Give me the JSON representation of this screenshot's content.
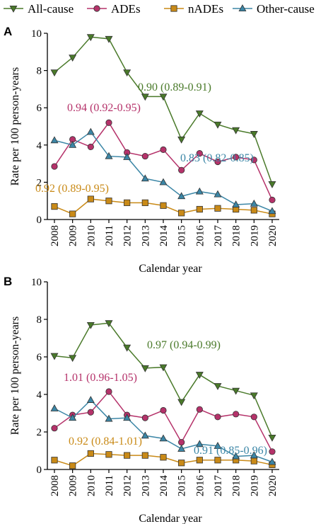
{
  "legend": [
    {
      "name": "All-cause",
      "color": "#4a7a2a",
      "marker": "triangle-down"
    },
    {
      "name": "ADEs",
      "color": "#b5326a",
      "marker": "circle"
    },
    {
      "name": "nADEs",
      "color": "#c98a17",
      "marker": "square"
    },
    {
      "name": "Other-cause",
      "color": "#3b86a6",
      "marker": "triangle-up"
    }
  ],
  "chart_data": [
    {
      "panel": "A",
      "type": "line",
      "xlabel": "Calendar year",
      "ylabel": "Rate per 100 person-years",
      "ylim": [
        0,
        10
      ],
      "yticks": [
        "0",
        "2",
        "4",
        "6",
        "8",
        "10"
      ],
      "x": [
        "2008",
        "2009",
        "2010",
        "2011",
        "2012",
        "2013",
        "2014",
        "2015",
        "2016",
        "2017",
        "2018",
        "2019",
        "2020"
      ],
      "series": [
        {
          "name": "All-cause",
          "color": "#4a7a2a",
          "marker": "triangle-down",
          "values": [
            7.9,
            8.7,
            9.8,
            9.7,
            7.9,
            6.6,
            6.6,
            4.3,
            5.7,
            5.1,
            4.8,
            4.6,
            1.9
          ]
        },
        {
          "name": "ADEs",
          "color": "#b5326a",
          "marker": "circle",
          "values": [
            2.85,
            4.3,
            3.9,
            5.2,
            3.6,
            3.4,
            3.75,
            2.65,
            3.55,
            3.1,
            3.35,
            3.2,
            1.05
          ]
        },
        {
          "name": "nADEs",
          "color": "#c98a17",
          "marker": "square",
          "values": [
            0.7,
            0.3,
            1.1,
            1.0,
            0.9,
            0.9,
            0.75,
            0.35,
            0.55,
            0.6,
            0.55,
            0.5,
            0.3
          ]
        },
        {
          "name": "Other-cause",
          "color": "#3b86a6",
          "marker": "triangle-up",
          "values": [
            4.25,
            4.0,
            4.7,
            3.4,
            3.35,
            2.2,
            2.0,
            1.25,
            1.5,
            1.35,
            0.8,
            0.85,
            0.45
          ]
        }
      ],
      "annotations": [
        {
          "text": "0.90 (0.89-0.91)",
          "color": "#4a7a2a"
        },
        {
          "text": "0.94 (0.92-0.95)",
          "color": "#b5326a"
        },
        {
          "text": "0.92 (0.89-0.95)",
          "color": "#c98a17"
        },
        {
          "text": "0.83 (0.82-0.85)",
          "color": "#3b86a6"
        }
      ]
    },
    {
      "panel": "B",
      "type": "line",
      "xlabel": "Calendar year",
      "ylabel": "Rate per 100 person-years",
      "ylim": [
        0,
        10
      ],
      "yticks": [
        "0",
        "2",
        "4",
        "6",
        "8",
        "10"
      ],
      "x": [
        "2008",
        "2009",
        "2010",
        "2011",
        "2012",
        "2013",
        "2014",
        "2015",
        "2016",
        "2017",
        "2018",
        "2019",
        "2020"
      ],
      "series": [
        {
          "name": "All-cause",
          "color": "#4a7a2a",
          "marker": "triangle-down",
          "values": [
            6.05,
            5.95,
            7.7,
            7.8,
            6.5,
            5.4,
            5.45,
            3.6,
            5.05,
            4.45,
            4.2,
            3.95,
            1.7
          ]
        },
        {
          "name": "ADEs",
          "color": "#b5326a",
          "marker": "circle",
          "values": [
            2.2,
            2.9,
            3.05,
            4.15,
            2.9,
            2.75,
            3.15,
            1.45,
            3.2,
            2.8,
            2.95,
            2.8,
            0.95
          ]
        },
        {
          "name": "nADEs",
          "color": "#c98a17",
          "marker": "square",
          "values": [
            0.5,
            0.2,
            0.85,
            0.8,
            0.75,
            0.75,
            0.65,
            0.35,
            0.5,
            0.5,
            0.5,
            0.45,
            0.25
          ]
        },
        {
          "name": "Other-cause",
          "color": "#3b86a6",
          "marker": "triangle-up",
          "values": [
            3.25,
            2.75,
            3.7,
            2.7,
            2.75,
            1.8,
            1.65,
            1.1,
            1.35,
            1.25,
            0.7,
            0.75,
            0.4
          ]
        }
      ],
      "annotations": [
        {
          "text": "0.97 (0.94-0.99)",
          "color": "#4a7a2a"
        },
        {
          "text": "1.01 (0.96-1.05)",
          "color": "#b5326a"
        },
        {
          "text": "0.92 (0.84-1.01)",
          "color": "#c98a17"
        },
        {
          "text": "0.91 (0.85-0.96)",
          "color": "#3b86a6"
        }
      ]
    }
  ]
}
